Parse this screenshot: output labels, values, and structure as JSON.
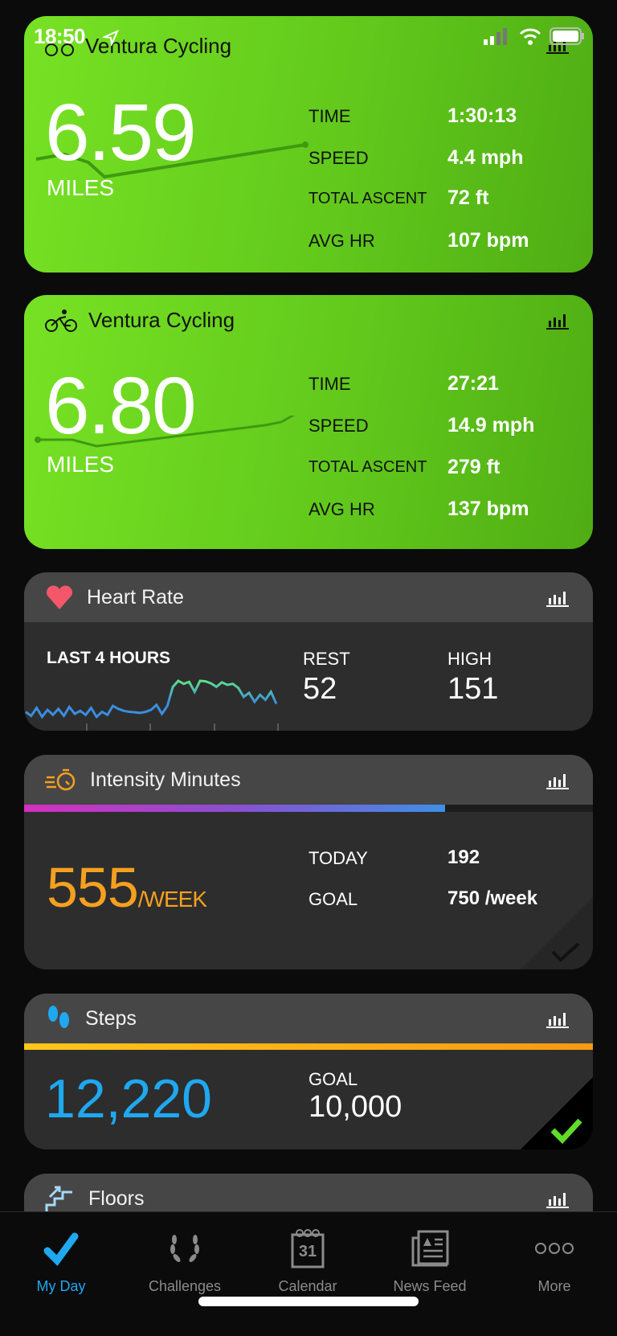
{
  "status_bar": {
    "time": "18:50"
  },
  "activities": [
    {
      "title": "Ventura Cycling",
      "distance": "6.59",
      "unit": "MILES",
      "stats": [
        {
          "label": "TIME",
          "value": "1:30:13"
        },
        {
          "label": "SPEED",
          "value": "4.4 mph"
        },
        {
          "label": "TOTAL ASCENT",
          "value": "72 ft"
        },
        {
          "label": "AVG HR",
          "value": "107 bpm"
        }
      ]
    },
    {
      "title": "Ventura Cycling",
      "distance": "6.80",
      "unit": "MILES",
      "stats": [
        {
          "label": "TIME",
          "value": "27:21"
        },
        {
          "label": "SPEED",
          "value": "14.9 mph"
        },
        {
          "label": "TOTAL ASCENT",
          "value": "279 ft"
        },
        {
          "label": "AVG HR",
          "value": "137 bpm"
        }
      ]
    }
  ],
  "heart_rate": {
    "title": "Heart Rate",
    "period": "LAST 4 HOURS",
    "rest_label": "REST",
    "rest": "52",
    "high_label": "HIGH",
    "high": "151",
    "sparkline": [
      80,
      72,
      88,
      70,
      84,
      74,
      86,
      72,
      90,
      76,
      82,
      74,
      88,
      70,
      80,
      74,
      92,
      86,
      82,
      80,
      79,
      78,
      80,
      84,
      94,
      76,
      92,
      130,
      142,
      136,
      140,
      120,
      142,
      141,
      137,
      130,
      139,
      134,
      136,
      128,
      110,
      118,
      100,
      114,
      104,
      120,
      96
    ]
  },
  "intensity": {
    "title": "Intensity Minutes",
    "value": "555",
    "unit": "/WEEK",
    "today_label": "TODAY",
    "today": "192",
    "goal_label": "GOAL",
    "goal": "750 /week",
    "progress": 0.74,
    "color": "#f5a01f"
  },
  "steps": {
    "title": "Steps",
    "value": "12,220",
    "goal_label": "GOAL",
    "goal": "10,000",
    "progress": 1.0,
    "color": "#1fa8f0",
    "goal_met": true
  },
  "floors": {
    "title": "Floors"
  },
  "tabs": [
    {
      "label": "My Day",
      "active": true
    },
    {
      "label": "Challenges"
    },
    {
      "label": "Calendar",
      "icon_text": "31"
    },
    {
      "label": "News Feed"
    },
    {
      "label": "More"
    }
  ]
}
